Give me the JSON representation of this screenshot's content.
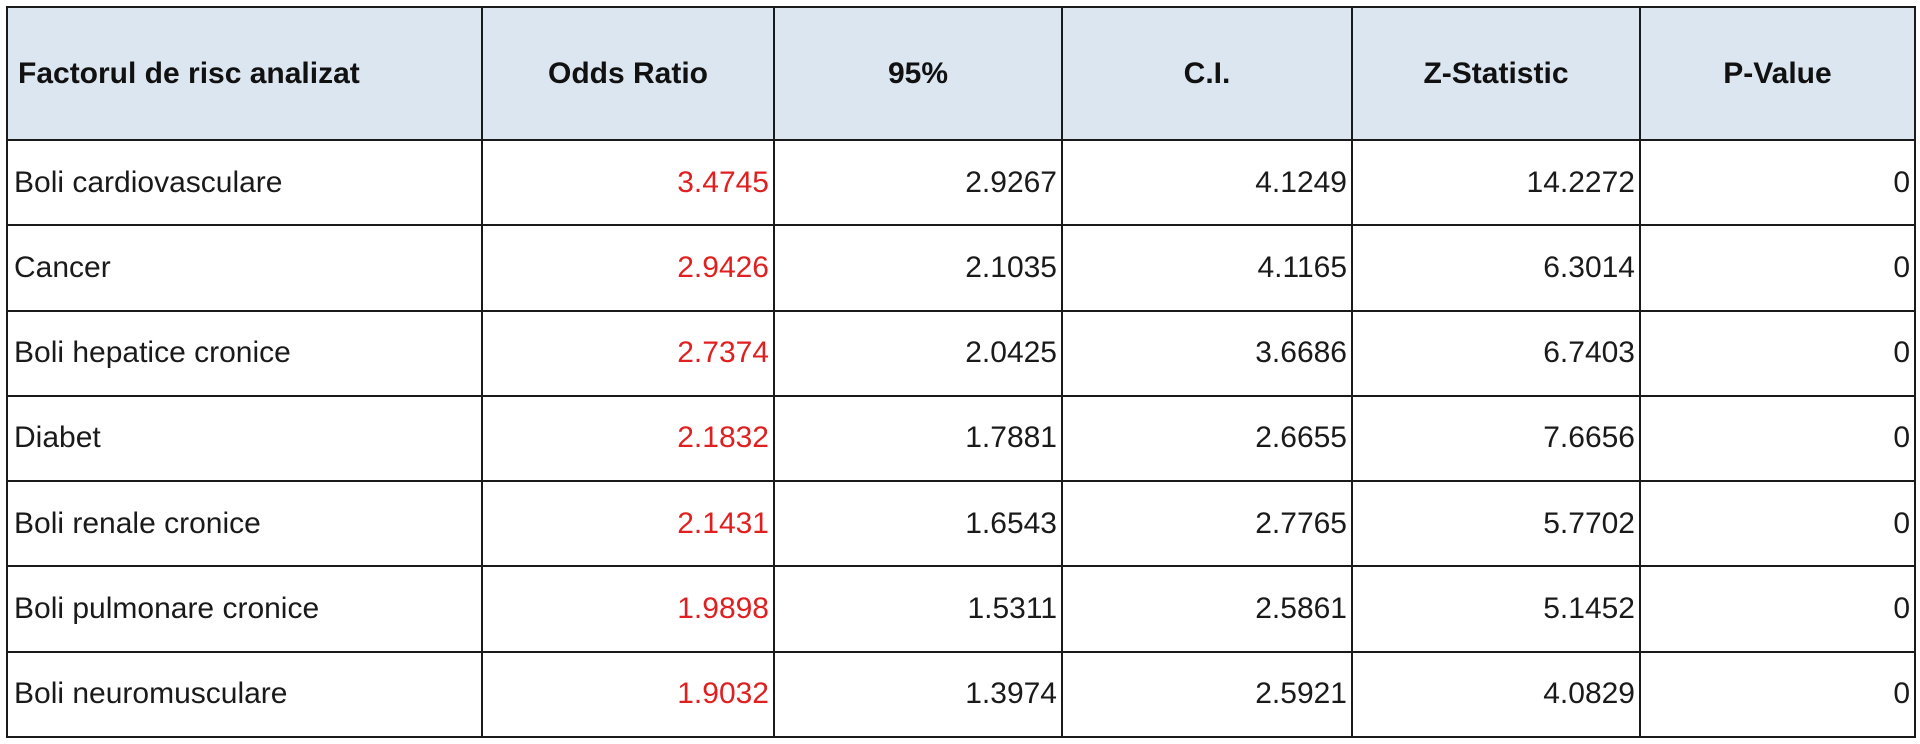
{
  "table": {
    "headers": [
      "Factorul de risc analizat",
      "Odds Ratio",
      "95%",
      "C.I.",
      "Z-Statistic",
      "P-Value"
    ],
    "rows": [
      {
        "factor": "Boli cardiovasculare",
        "odds_ratio": "3.4745",
        "ci_low": "2.9267",
        "ci_high": "4.1249",
        "z": "14.2272",
        "p": "0"
      },
      {
        "factor": "Cancer",
        "odds_ratio": "2.9426",
        "ci_low": "2.1035",
        "ci_high": "4.1165",
        "z": "6.3014",
        "p": "0"
      },
      {
        "factor": "Boli hepatice cronice",
        "odds_ratio": "2.7374",
        "ci_low": "2.0425",
        "ci_high": "3.6686",
        "z": "6.7403",
        "p": "0"
      },
      {
        "factor": "Diabet",
        "odds_ratio": "2.1832",
        "ci_low": "1.7881",
        "ci_high": "2.6655",
        "z": "7.6656",
        "p": "0"
      },
      {
        "factor": "Boli renale cronice",
        "odds_ratio": "2.1431",
        "ci_low": "1.6543",
        "ci_high": "2.7765",
        "z": "5.7702",
        "p": "0"
      },
      {
        "factor": "Boli pulmonare cronice",
        "odds_ratio": "1.9898",
        "ci_low": "1.5311",
        "ci_high": "2.5861",
        "z": "5.1452",
        "p": "0"
      },
      {
        "factor": "Boli neuromusculare",
        "odds_ratio": "1.9032",
        "ci_low": "1.3974",
        "ci_high": "2.5921",
        "z": "4.0829",
        "p": "0"
      }
    ]
  },
  "colors": {
    "header_background": "#dce6f1",
    "odds_ratio_text": "#e02020",
    "border": "#1a1a1a"
  }
}
